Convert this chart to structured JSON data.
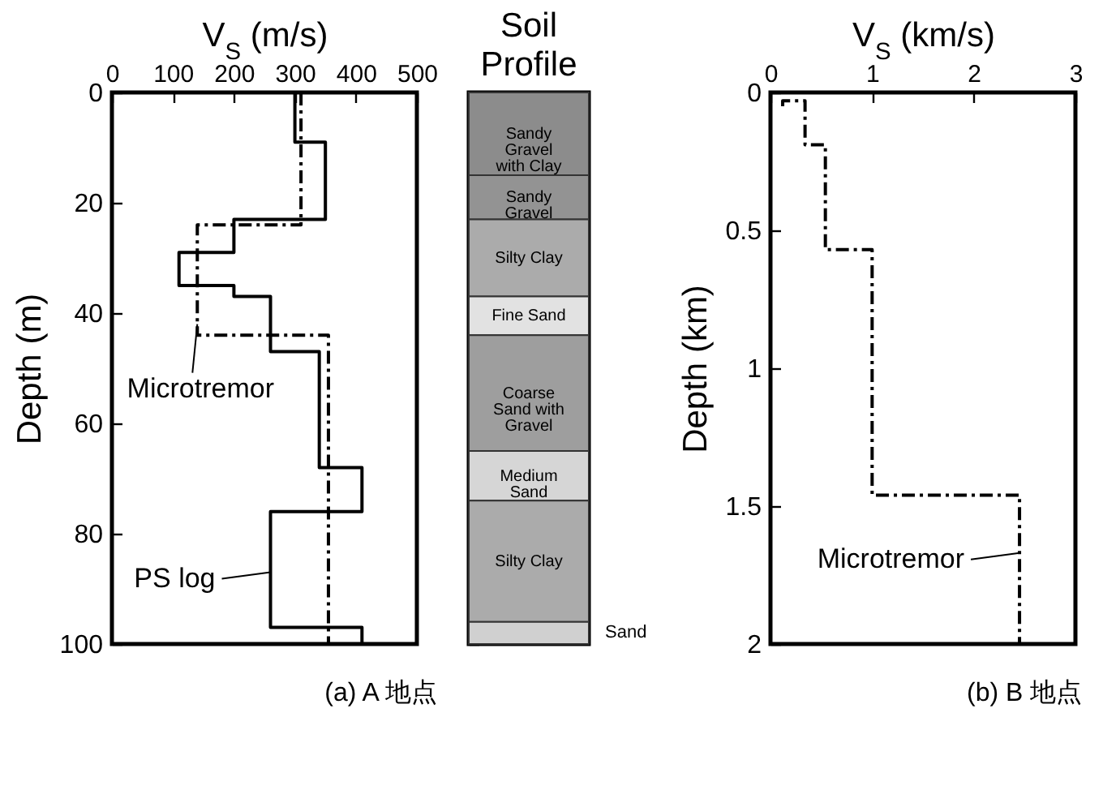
{
  "chart_data": [
    {
      "type": "line",
      "xlabel": "V$_{S}$ (m/s)",
      "ylabel": "Depth (m)",
      "xlim": [
        0,
        500
      ],
      "xticks": [
        0,
        100,
        200,
        300,
        400,
        500
      ],
      "ylim": [
        100,
        0
      ],
      "yticks": [
        0,
        20,
        40,
        60,
        80,
        100
      ],
      "series": [
        {
          "color": "#000000",
          "line_style": "solid",
          "x": [
            300,
            300,
            350,
            350,
            200,
            200,
            110,
            110,
            200,
            200,
            260,
            260,
            340,
            340,
            410,
            410,
            260,
            260,
            410,
            410
          ],
          "values": [
            0,
            9,
            9,
            23,
            23,
            29,
            29,
            35,
            35,
            37,
            37,
            47,
            47,
            68,
            68,
            76,
            76,
            97,
            97,
            100
          ]
        },
        {
          "color": "#000000",
          "line_style": "dashed",
          "x": [
            310,
            310,
            140,
            140,
            355,
            355
          ],
          "values": [
            0,
            24,
            24,
            44,
            44,
            100
          ]
        }
      ],
      "annotations": [
        {
          "text": "Microtremor",
          "x": 140,
          "y": 42
        },
        {
          "text": "PS log",
          "x": 260,
          "y": 87
        },
        "(a) A 地点"
      ]
    },
    {
      "type": "bar",
      "stacked": true,
      "title": "Soil Profile",
      "categories": [
        null
      ],
      "ylim": [
        100,
        0
      ],
      "yticks": [
        0,
        20,
        40,
        60,
        80,
        100
      ],
      "tick_labels": false,
      "series": [
        {
          "name": "Sandy Gravel with Clay",
          "color": "#8c8c8c",
          "values": [
            15
          ]
        },
        {
          "name": "Sandy Gravel",
          "color": "#939393",
          "values": [
            8
          ]
        },
        {
          "name": "Silty Clay",
          "color": "#ababab",
          "values": [
            14
          ]
        },
        {
          "name": "Fine Sand",
          "color": "#e2e2e2",
          "values": [
            7
          ]
        },
        {
          "name": "Coarse Sand with Gravel",
          "color": "#9e9e9e",
          "values": [
            21
          ]
        },
        {
          "name": "Medium Sand",
          "color": "#d6d6d6",
          "values": [
            9
          ]
        },
        {
          "name": "Silty Clay",
          "color": "#ababab",
          "values": [
            22
          ]
        },
        {
          "name": "Sand",
          "color": "#d0d0d0",
          "values": [
            4
          ]
        }
      ]
    },
    {
      "type": "line",
      "xlabel": "V$_{S}$ (km/s)",
      "ylabel": "Depth (km)",
      "xlim": [
        0,
        3
      ],
      "xticks": [
        0,
        1,
        2,
        3
      ],
      "ylim": [
        2,
        0
      ],
      "yticks": [
        0,
        0.5,
        1,
        1.5,
        2
      ],
      "series": [
        {
          "color": "#000000",
          "line_style": "dashed",
          "x": [
            0.12,
            0.12,
            0.34,
            0.34,
            0.54,
            0.54,
            1.0,
            1.0,
            2.45,
            2.45
          ],
          "values": [
            0.05,
            0.03,
            0.03,
            0.19,
            0.19,
            0.57,
            0.57,
            1.46,
            1.46,
            2
          ]
        }
      ],
      "annotations": [
        {
          "text": "Microtremor",
          "x": 2.45,
          "y": 1.67
        },
        "(b) B 地点"
      ]
    }
  ]
}
